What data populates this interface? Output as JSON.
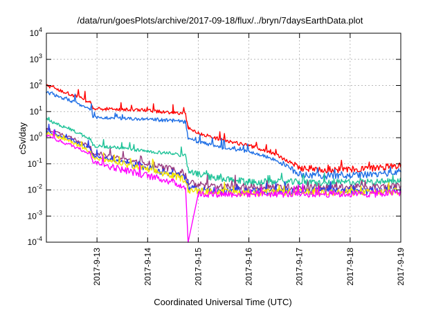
{
  "chart_data": {
    "type": "line",
    "title": "/data/run/goesPlots/archive/2017-09-18/flux/../bryn/7daysEarthData.plot",
    "xlabel": "Coordinated Universal Time (UTC)",
    "ylabel": "cSv/day",
    "yscale": "log",
    "ylim": [
      0.0001,
      10000
    ],
    "xlim": [
      "2017-09-12T00:00",
      "2017-09-19T00:00"
    ],
    "x_ticks": [
      "2017-9-13",
      "2017-9-14",
      "2017-9-15",
      "2017-9-16",
      "2017-9-17",
      "2017-9-18",
      "2017-9-19"
    ],
    "y_ticks": [
      {
        "value": 0.0001,
        "base": "10",
        "exp": "-4"
      },
      {
        "value": 0.001,
        "base": "10",
        "exp": "-3"
      },
      {
        "value": 0.01,
        "base": "10",
        "exp": "-2"
      },
      {
        "value": 0.1,
        "base": "10",
        "exp": "-1"
      },
      {
        "value": 1,
        "base": "10",
        "exp": "0"
      },
      {
        "value": 10,
        "base": "10",
        "exp": "1"
      },
      {
        "value": 100,
        "base": "10",
        "exp": "2"
      },
      {
        "value": 1000,
        "base": "10",
        "exp": "3"
      },
      {
        "value": 10000,
        "base": "10",
        "exp": "4"
      }
    ],
    "grid": true,
    "legend": "none",
    "x": [
      "2017-09-12T00:00",
      "2017-09-12T12:00",
      "2017-09-12T21:00",
      "2017-09-12T22:00",
      "2017-09-13T12:00",
      "2017-09-14T00:00",
      "2017-09-14T12:00",
      "2017-09-14T18:00",
      "2017-09-14T19:12",
      "2017-09-15T00:00",
      "2017-09-15T12:00",
      "2017-09-16T00:00",
      "2017-09-16T12:00",
      "2017-09-17T00:00",
      "2017-09-17T12:00",
      "2017-09-18T00:00",
      "2017-09-18T12:00",
      "2017-09-19T00:00"
    ],
    "series": [
      {
        "color": "#ff0000",
        "values": [
          100,
          45,
          22,
          13,
          12,
          11,
          9,
          8,
          2.5,
          1.5,
          0.8,
          0.5,
          0.25,
          0.07,
          0.06,
          0.06,
          0.07,
          0.09
        ]
      },
      {
        "color": "#1f6fe5",
        "values": [
          55,
          25,
          12,
          6,
          5.5,
          5,
          4.5,
          4,
          0.9,
          0.7,
          0.4,
          0.3,
          0.15,
          0.04,
          0.035,
          0.035,
          0.04,
          0.05
        ]
      },
      {
        "color": "#1fc398",
        "values": [
          5,
          2,
          0.9,
          0.5,
          0.4,
          0.3,
          0.25,
          0.2,
          0.06,
          0.04,
          0.025,
          0.02,
          0.02,
          0.02,
          0.018,
          0.02,
          0.02,
          0.022
        ]
      },
      {
        "color": "#993b80",
        "values": [
          2.2,
          1,
          0.45,
          0.25,
          0.16,
          0.1,
          0.06,
          0.04,
          0.02,
          0.015,
          0.013,
          0.013,
          0.013,
          0.013,
          0.012,
          0.013,
          0.013,
          0.014
        ]
      },
      {
        "color": "#2a3ee6",
        "values": [
          1.8,
          0.8,
          0.35,
          0.2,
          0.12,
          0.07,
          0.04,
          0.03,
          0.012,
          0.01,
          0.009,
          0.009,
          0.009,
          0.009,
          0.009,
          0.009,
          0.009,
          0.01
        ]
      },
      {
        "color": "#f5e600",
        "values": [
          1.5,
          0.7,
          0.3,
          0.17,
          0.1,
          0.06,
          0.035,
          0.025,
          0.01,
          0.009,
          0.008,
          0.008,
          0.008,
          0.008,
          0.008,
          0.008,
          0.008,
          0.009
        ]
      },
      {
        "color": "#ff00ff",
        "values": [
          1.2,
          0.5,
          0.25,
          0.12,
          0.06,
          0.035,
          0.02,
          0.012,
          0.0001,
          0.007,
          0.007,
          0.007,
          0.007,
          0.007,
          0.007,
          0.007,
          0.007,
          0.008
        ]
      }
    ]
  }
}
